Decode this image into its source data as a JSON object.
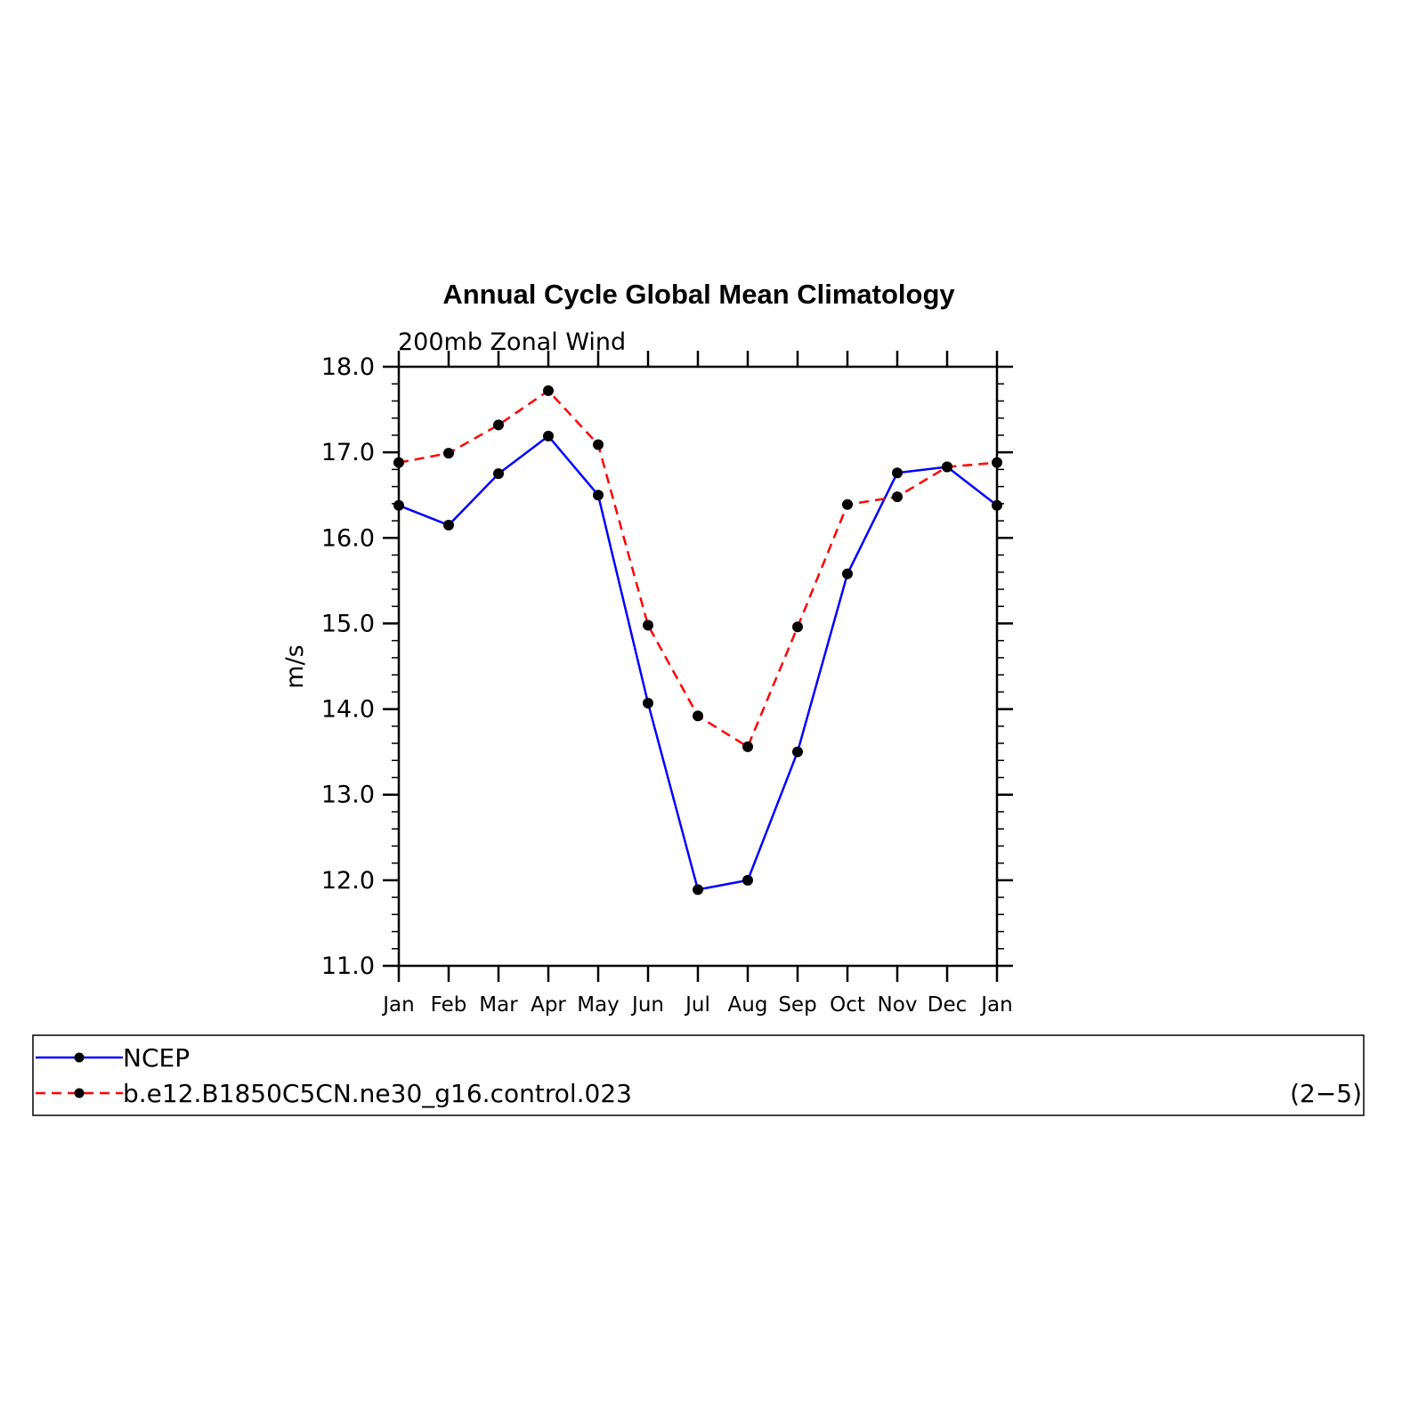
{
  "chart_data": {
    "type": "line",
    "title": "Annual Cycle Global Mean Climatology",
    "subtitle": "200mb Zonal Wind",
    "xlabel": "",
    "ylabel": "m/s",
    "ylim": [
      11.0,
      18.0
    ],
    "yticks": [
      "11.0",
      "12.0",
      "13.0",
      "14.0",
      "15.0",
      "16.0",
      "17.0",
      "18.0"
    ],
    "categories": [
      "Jan",
      "Feb",
      "Mar",
      "Apr",
      "May",
      "Jun",
      "Jul",
      "Aug",
      "Sep",
      "Oct",
      "Nov",
      "Dec",
      "Jan"
    ],
    "series": [
      {
        "name": "NCEP",
        "color": "#0000ff",
        "dash": "solid",
        "values": [
          16.38,
          16.15,
          16.75,
          17.19,
          16.5,
          14.07,
          11.89,
          12.0,
          13.5,
          15.58,
          16.76,
          16.83,
          16.38
        ]
      },
      {
        "name": "b.e12.B1850C5CN.ne30_g16.control.023",
        "color": "#ff0000",
        "dash": "dashed",
        "values": [
          16.88,
          16.99,
          17.32,
          17.72,
          17.09,
          14.98,
          13.92,
          13.56,
          14.96,
          16.39,
          16.48,
          16.83,
          16.88
        ]
      }
    ],
    "marker_color": "#000000",
    "panel_label": "(2−5)"
  }
}
